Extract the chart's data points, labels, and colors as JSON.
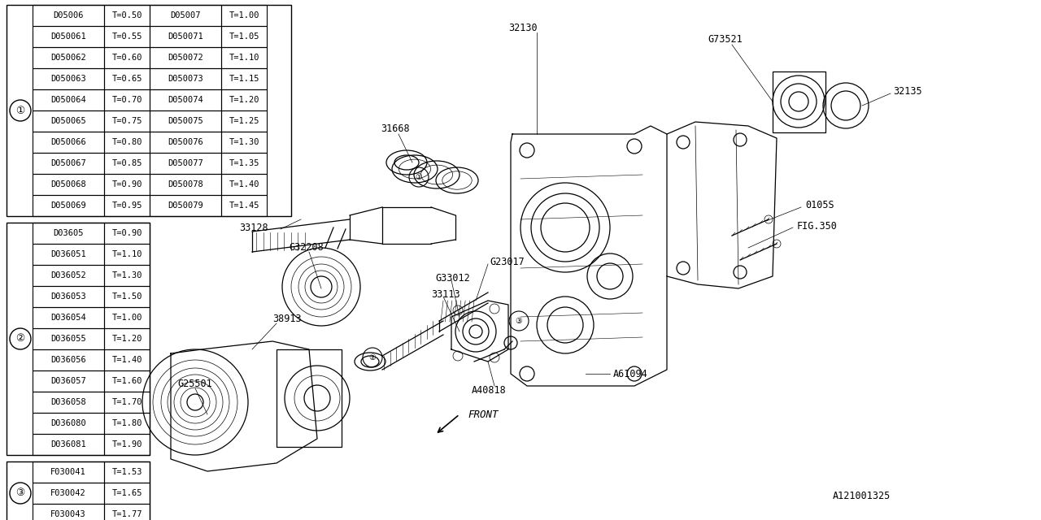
{
  "bg_color": "#ffffff",
  "figsize": [
    12.8,
    6.4
  ],
  "dpi": 100,
  "xlim": [
    0,
    1280
  ],
  "ylim": [
    0,
    640
  ],
  "table1_title": "①",
  "table1_rows": [
    [
      "D05006",
      "T=0.50",
      "D05007",
      "T=1.00"
    ],
    [
      "D050061",
      "T=0.55",
      "D050071",
      "T=1.05"
    ],
    [
      "D050062",
      "T=0.60",
      "D050072",
      "T=1.10"
    ],
    [
      "D050063",
      "T=0.65",
      "D050073",
      "T=1.15"
    ],
    [
      "D050064",
      "T=0.70",
      "D050074",
      "T=1.20"
    ],
    [
      "D050065",
      "T=0.75",
      "D050075",
      "T=1.25"
    ],
    [
      "D050066",
      "T=0.80",
      "D050076",
      "T=1.30"
    ],
    [
      "D050067",
      "T=0.85",
      "D050077",
      "T=1.35"
    ],
    [
      "D050068",
      "T=0.90",
      "D050078",
      "T=1.40"
    ],
    [
      "D050069",
      "T=0.95",
      "D050079",
      "T=1.45"
    ]
  ],
  "table2_title": "②",
  "table2_rows": [
    [
      "D03605",
      "T=0.90"
    ],
    [
      "D036051",
      "T=1.10"
    ],
    [
      "D036052",
      "T=1.30"
    ],
    [
      "D036053",
      "T=1.50"
    ],
    [
      "D036054",
      "T=1.00"
    ],
    [
      "D036055",
      "T=1.20"
    ],
    [
      "D036056",
      "T=1.40"
    ],
    [
      "D036057",
      "T=1.60"
    ],
    [
      "D036058",
      "T=1.70"
    ],
    [
      "D036080",
      "T=1.80"
    ],
    [
      "D036081",
      "T=1.90"
    ]
  ],
  "table3_title": "③",
  "table3_rows": [
    [
      "F030041",
      "T=1.53"
    ],
    [
      "F030042",
      "T=1.65"
    ],
    [
      "F030043",
      "T=1.77"
    ]
  ]
}
